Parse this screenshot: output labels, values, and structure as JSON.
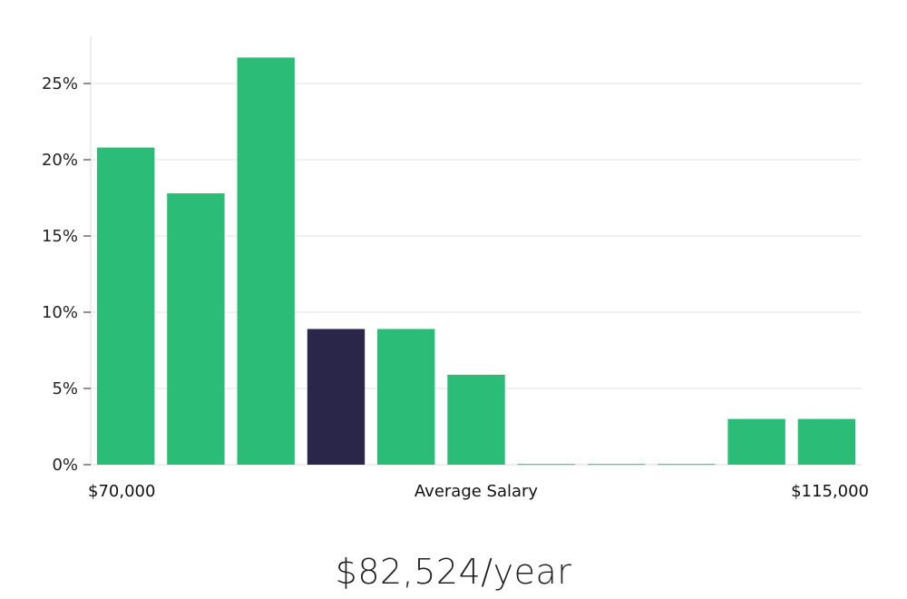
{
  "chart_data": {
    "type": "bar",
    "title": "",
    "xlabel": "Average Salary",
    "ylabel": "",
    "x_min_label": "$70,000",
    "x_max_label": "$115,000",
    "ylim": [
      0,
      28
    ],
    "yticks": [
      0,
      5,
      10,
      15,
      20,
      25
    ],
    "ytick_labels": [
      "0%",
      "5%",
      "10%",
      "15%",
      "20%",
      "25%"
    ],
    "values": [
      20.8,
      17.8,
      26.7,
      8.9,
      8.9,
      5.9,
      0.05,
      0.05,
      0.05,
      3.0,
      3.0
    ],
    "highlight_index": 3,
    "colors": {
      "bar": "#2bbd77",
      "highlight": "#29264a",
      "grid": "#e3e3e3",
      "axis": "#dddddd"
    },
    "grid": true,
    "legend": "none"
  },
  "summary": {
    "salary": "$82,524/year"
  }
}
